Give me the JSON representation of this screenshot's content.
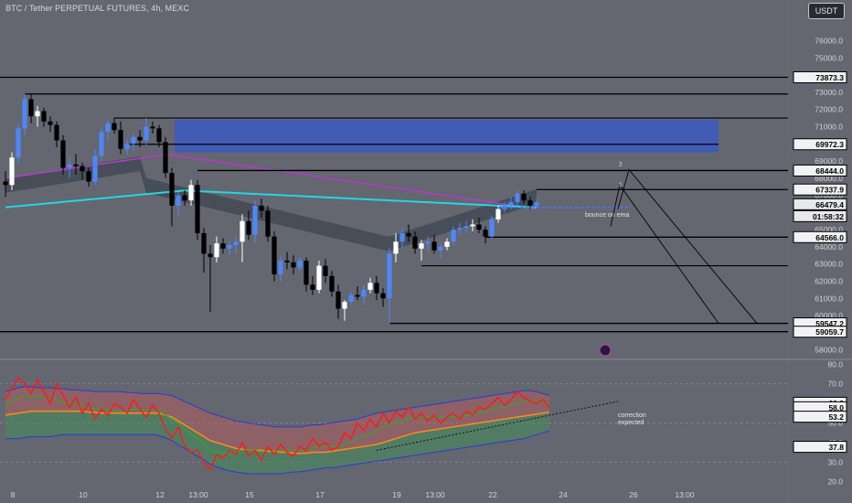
{
  "header": {
    "title": "BTC / Tether PERPETUAL FUTURES, 4h, MEXC",
    "currency_button": "USDT"
  },
  "colors": {
    "background": "#646670",
    "bull_candle": "#4f86f7",
    "bull_candle_alt": "#ffffff",
    "bear_candle": "#000000",
    "ema_cyan": "#24d6e0",
    "ema_purple": "#b23cc8",
    "supply_zone": "#3c5ac2",
    "rsi_line": "#ff1a1a",
    "rsi_signal": "#2eaa2e",
    "rsi_basis": "#ff8a1a",
    "band": "#2a3ad8"
  },
  "chart_data": [
    {
      "type": "candlestick",
      "ylim": [
        57500,
        77200
      ],
      "yticks": [
        58000,
        59000,
        60000,
        61000,
        62000,
        63000,
        64000,
        65000,
        66000,
        67000,
        68000,
        69000,
        70000,
        71000,
        72000,
        73000,
        74000,
        75000,
        76000
      ],
      "xticks": [
        {
          "label": "8",
          "i": 0
        },
        {
          "label": "10",
          "i": 11
        },
        {
          "label": "12",
          "i": 23
        },
        {
          "label": "13:00",
          "i": 29
        },
        {
          "label": "15",
          "i": 37
        },
        {
          "label": "17",
          "i": 48
        },
        {
          "label": "19",
          "i": 60
        },
        {
          "label": "13:00",
          "i": 66
        },
        {
          "label": "22",
          "i": 75
        },
        {
          "label": "24",
          "i": 86
        },
        {
          "label": "26",
          "i": 97
        },
        {
          "label": "13:00",
          "i": 105
        }
      ],
      "candles": [
        [
          67800,
          68400,
          66900,
          67600
        ],
        [
          67600,
          69500,
          67300,
          69200
        ],
        [
          69200,
          71200,
          68800,
          70900
        ],
        [
          70900,
          72900,
          70500,
          72600
        ],
        [
          72600,
          72900,
          71200,
          71600
        ],
        [
          71600,
          72200,
          71000,
          71900
        ],
        [
          71900,
          72100,
          71000,
          71300
        ],
        [
          71300,
          71600,
          70700,
          71100
        ],
        [
          71100,
          71300,
          69800,
          70200
        ],
        [
          70200,
          70500,
          68200,
          68600
        ],
        [
          68600,
          69200,
          68000,
          68800
        ],
        [
          68800,
          69400,
          68200,
          68700
        ],
        [
          68700,
          68900,
          67900,
          68400
        ],
        [
          68400,
          68600,
          67500,
          67800
        ],
        [
          67800,
          69700,
          67600,
          69300
        ],
        [
          69300,
          71000,
          69000,
          70700
        ],
        [
          70700,
          71400,
          70200,
          71200
        ],
        [
          71200,
          71500,
          70600,
          70800
        ],
        [
          70800,
          71300,
          69400,
          69700
        ],
        [
          69700,
          70300,
          69400,
          70000
        ],
        [
          70000,
          70600,
          69600,
          70400
        ],
        [
          70400,
          70800,
          69800,
          70200
        ],
        [
          70200,
          71500,
          69900,
          71000
        ],
        [
          71000,
          71300,
          70600,
          70900
        ],
        [
          70900,
          71100,
          69800,
          70100
        ],
        [
          70100,
          70400,
          68000,
          68300
        ],
        [
          68300,
          68600,
          65200,
          66400
        ],
        [
          66400,
          67200,
          65800,
          67000
        ],
        [
          67000,
          67300,
          66400,
          66700
        ],
        [
          66700,
          67900,
          66400,
          67600
        ],
        [
          67600,
          67900,
          64400,
          64800
        ],
        [
          64800,
          65100,
          62500,
          63600
        ],
        [
          63600,
          64100,
          60200,
          63400
        ],
        [
          63400,
          64600,
          63100,
          64200
        ],
        [
          64200,
          64500,
          63600,
          63900
        ],
        [
          63900,
          64300,
          63500,
          64100
        ],
        [
          64100,
          64600,
          63600,
          64300
        ],
        [
          64300,
          65900,
          63100,
          65500
        ],
        [
          65500,
          66100,
          64400,
          64700
        ],
        [
          64700,
          66700,
          64200,
          66400
        ],
        [
          66400,
          66800,
          65700,
          66100
        ],
        [
          66100,
          66400,
          64300,
          64600
        ],
        [
          64600,
          64900,
          62000,
          62400
        ],
        [
          62400,
          63500,
          62000,
          63200
        ],
        [
          63200,
          63700,
          62700,
          63100
        ],
        [
          63100,
          63500,
          62400,
          62800
        ],
        [
          62800,
          63400,
          62600,
          63200
        ],
        [
          63200,
          63400,
          61400,
          61800
        ],
        [
          61800,
          62300,
          61200,
          61500
        ],
        [
          61500,
          63200,
          61300,
          62900
        ],
        [
          62900,
          63300,
          61900,
          62300
        ],
        [
          62300,
          62600,
          61100,
          61400
        ],
        [
          61400,
          61800,
          59800,
          60400
        ],
        [
          60400,
          60900,
          59700,
          60800
        ],
        [
          60800,
          61400,
          60600,
          61200
        ],
        [
          61200,
          61700,
          60900,
          61100
        ],
        [
          61100,
          61800,
          60600,
          61500
        ],
        [
          61500,
          62200,
          61300,
          61900
        ],
        [
          61900,
          62300,
          60900,
          61300
        ],
        [
          61300,
          61600,
          60500,
          61000
        ],
        [
          61000,
          63900,
          59500,
          63600
        ],
        [
          63600,
          64800,
          63100,
          64300
        ],
        [
          64300,
          65100,
          63900,
          64800
        ],
        [
          64800,
          65300,
          64300,
          64600
        ],
        [
          64600,
          64900,
          63600,
          63900
        ],
        [
          63900,
          64400,
          63200,
          64200
        ],
        [
          64200,
          64600,
          63700,
          64300
        ],
        [
          64300,
          64700,
          63600,
          63800
        ],
        [
          63800,
          64200,
          63300,
          64000
        ],
        [
          64000,
          64500,
          63800,
          64300
        ],
        [
          64300,
          65200,
          64100,
          65000
        ],
        [
          65000,
          65400,
          64700,
          65100
        ],
        [
          65100,
          65500,
          64800,
          65200
        ],
        [
          65200,
          65600,
          64900,
          65300
        ],
        [
          65300,
          65700,
          64800,
          65000
        ],
        [
          65000,
          65200,
          64200,
          64600
        ],
        [
          64600,
          65800,
          64500,
          65600
        ],
        [
          65600,
          66400,
          65400,
          66200
        ],
        [
          66200,
          66600,
          66000,
          66400
        ],
        [
          66400,
          66900,
          66200,
          66600
        ],
        [
          66600,
          67300,
          66400,
          67100
        ],
        [
          67100,
          67300,
          66500,
          66700
        ],
        [
          66700,
          66900,
          66200,
          66400
        ],
        [
          66400,
          66800,
          66300,
          66600
        ]
      ],
      "levels": [
        {
          "label": "73873.3",
          "value": 73873.3
        },
        {
          "label": "69972.3",
          "value": 69972.3
        },
        {
          "label": "68444.0",
          "value": 68444.0
        },
        {
          "label": "67337.9",
          "value": 67337.9
        },
        {
          "label": "66479.4",
          "value": 66479.4
        },
        {
          "label": "01:58:32",
          "value": 66479.4
        },
        {
          "label": "64566.0",
          "value": 64566.0
        },
        {
          "label": "59547.2",
          "value": 59547.2
        },
        {
          "label": "59059.7",
          "value": 59059.7
        }
      ],
      "annotations": {
        "bounce": "bounce on ema",
        "wave1": "1",
        "wave2": "2",
        "projection_targets": [
          59547.2,
          59547.2
        ]
      }
    },
    {
      "type": "line",
      "ylim": [
        17.5,
        82
      ],
      "yticks": [
        20.0,
        30.0,
        40.0,
        50.0,
        60.0,
        70.0,
        80.0
      ],
      "last_values": [
        {
          "label": "60.3",
          "value": 60.3
        },
        {
          "label": "58.0",
          "value": 58.0
        },
        {
          "label": "53.2",
          "value": 53.2
        },
        {
          "label": "37.8",
          "value": 37.8
        }
      ],
      "annotation": [
        "correction",
        "expected"
      ],
      "rsi": [
        62,
        68,
        73,
        70,
        65,
        72,
        66,
        60,
        70,
        64,
        58,
        63,
        55,
        60,
        52,
        57,
        54,
        60,
        58,
        55,
        62,
        57,
        53,
        59,
        55,
        47,
        42,
        48,
        38,
        35,
        36,
        30,
        26,
        34,
        32,
        36,
        34,
        40,
        33,
        36,
        31,
        38,
        34,
        39,
        35,
        33,
        38,
        36,
        42,
        38,
        40,
        36,
        38,
        45,
        42,
        50,
        46,
        52,
        48,
        55,
        50,
        56,
        53,
        58,
        52,
        55,
        51,
        54,
        50,
        53,
        55,
        52,
        56,
        54,
        58,
        57,
        60,
        63,
        59,
        62,
        66,
        63,
        61,
        60,
        62,
        58
      ],
      "signal": [
        58,
        61,
        63,
        64,
        63,
        64,
        63,
        62,
        62,
        61,
        60,
        60,
        59,
        58,
        57,
        57,
        56,
        56,
        56,
        56,
        57,
        57,
        56,
        56,
        56,
        54,
        52,
        50,
        47,
        44,
        42,
        39,
        36,
        35,
        35,
        35,
        35,
        36,
        36,
        36,
        35,
        36,
        36,
        36,
        36,
        36,
        36,
        36,
        37,
        38,
        38,
        38,
        38,
        39,
        40,
        42,
        43,
        44,
        46,
        48,
        49,
        50,
        51,
        52,
        53,
        53,
        53,
        53,
        53,
        53,
        53,
        53,
        54,
        54,
        55,
        56,
        57,
        58,
        58,
        59,
        60,
        61,
        61,
        61,
        61,
        60
      ],
      "basis": [
        54,
        54.5,
        55,
        55.5,
        56,
        56,
        56,
        56,
        56,
        56,
        56,
        56,
        56,
        55.5,
        55.5,
        55,
        55,
        55,
        55,
        55,
        55,
        55,
        55,
        55,
        55,
        54,
        53,
        51,
        49,
        47,
        45,
        43,
        41,
        40,
        39,
        38,
        37,
        36.5,
        36,
        36,
        36,
        35.5,
        35.5,
        35,
        35,
        34.5,
        34.5,
        34.5,
        35,
        35,
        35,
        35.5,
        36,
        36.5,
        37,
        37.5,
        38,
        38.5,
        39,
        40,
        41,
        42,
        43,
        44,
        45,
        45.5,
        46,
        46.5,
        47,
        47.5,
        48,
        48.5,
        49,
        49.5,
        50,
        50.5,
        51,
        51.5,
        52,
        52.5,
        53,
        53.5,
        54,
        54.5,
        55,
        55.5
      ],
      "upper": [
        66,
        67,
        68,
        68.5,
        68.5,
        68,
        68,
        68,
        67.5,
        67.5,
        67,
        67,
        66.5,
        66.5,
        66,
        66,
        66,
        66,
        66,
        65.5,
        65.5,
        65,
        65,
        65,
        65,
        64.5,
        64,
        62.5,
        61,
        59.5,
        58,
        56.5,
        55,
        54,
        53,
        52,
        51,
        50.5,
        50,
        49.5,
        49,
        48.5,
        48,
        48,
        48,
        48,
        48,
        48.5,
        49,
        49,
        49.5,
        50,
        50.5,
        51,
        51.5,
        52,
        53,
        54,
        55,
        55.5,
        56,
        56.5,
        57,
        57.5,
        58,
        58.5,
        59,
        59.5,
        60,
        60.5,
        61,
        61.5,
        62,
        62.5,
        63,
        63.5,
        64,
        64.5,
        65,
        65.5,
        66,
        66.5,
        66.5,
        66,
        65,
        64
      ],
      "lower": [
        42,
        42,
        42,
        42.5,
        43,
        43,
        43,
        43,
        43.5,
        44,
        44,
        44,
        44,
        44,
        44,
        44,
        44,
        44,
        44,
        44,
        44,
        44,
        44,
        44,
        43.5,
        42.5,
        41,
        39,
        37,
        35,
        33,
        31,
        29,
        27.5,
        26.5,
        25.5,
        25,
        24.5,
        24,
        24,
        24,
        24,
        24,
        24,
        24.5,
        25,
        25,
        25.5,
        26,
        26.5,
        27,
        27,
        27.5,
        28,
        28.5,
        29,
        29.5,
        30,
        30.5,
        31,
        31.5,
        32,
        32.5,
        33,
        33.5,
        34,
        34.5,
        35,
        35.5,
        36,
        36.5,
        37,
        37.5,
        38,
        38.5,
        39,
        39.5,
        40,
        40.5,
        41,
        41.5,
        42,
        43,
        44,
        45,
        46
      ]
    }
  ]
}
